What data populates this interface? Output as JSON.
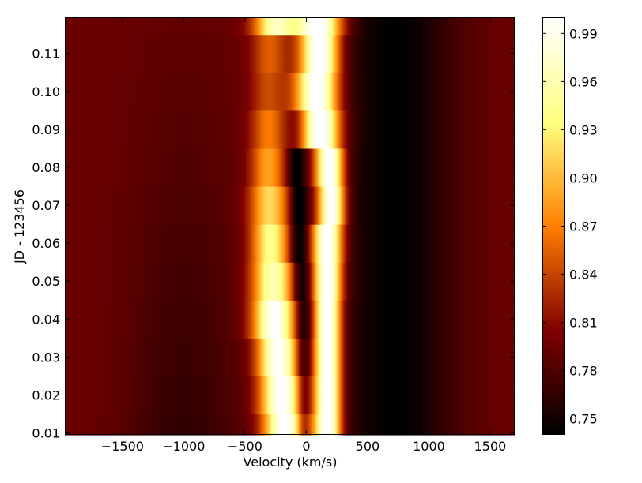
{
  "chart_data": {
    "type": "heatmap",
    "title": "",
    "xlabel": "Velocity (km/s)",
    "ylabel": "JD - 123456",
    "xlim": [
      -1970,
      1700
    ],
    "ylim": [
      0.0095,
      0.1195
    ],
    "x_ticks": [
      -1500,
      -1000,
      -500,
      0,
      500,
      1000,
      1500
    ],
    "x_tick_labels": [
      "−1500",
      "−1000",
      "−500",
      "0",
      "500",
      "1000",
      "1500"
    ],
    "y_ticks": [
      0.01,
      0.02,
      0.03,
      0.04,
      0.05,
      0.06,
      0.07,
      0.08,
      0.09,
      0.1,
      0.11
    ],
    "y_tick_labels": [
      "0.01",
      "0.02",
      "0.03",
      "0.04",
      "0.05",
      "0.06",
      "0.07",
      "0.08",
      "0.09",
      "0.10",
      "0.11"
    ],
    "rows_jd": [
      0.01,
      0.02,
      0.03,
      0.04,
      0.05,
      0.06,
      0.07,
      0.08,
      0.09,
      0.1,
      0.11,
      0.12
    ],
    "colorbar": {
      "colormap": "afmhot",
      "vmin": 0.74,
      "vmax": 1.0,
      "ticks": [
        0.75,
        0.78,
        0.81,
        0.84,
        0.87,
        0.9,
        0.93,
        0.96,
        0.99
      ],
      "tick_labels": [
        "0.75",
        "0.78",
        "0.81",
        "0.84",
        "0.87",
        "0.90",
        "0.93",
        "0.96",
        "0.99"
      ]
    },
    "profile_features": {
      "continuum_level": 0.795,
      "broad_absorption": {
        "center": 720,
        "width": 350,
        "depth": 0.055
      },
      "blue_dip": {
        "center": -1000,
        "width": 350,
        "depth_min": 0.005,
        "depth_max": 0.03
      },
      "emission_rows": [
        {
          "jd": 0.01,
          "blue_center": -175,
          "blue_width": 120,
          "blue_amp": 0.215,
          "dip_center": -25,
          "dip_width": 40,
          "dip_amp": 0.06,
          "red_center": 175,
          "red_width": 75,
          "red_amp": 0.235
        },
        {
          "jd": 0.02,
          "blue_center": -200,
          "blue_width": 120,
          "blue_amp": 0.215,
          "dip_center": -20,
          "dip_width": 45,
          "dip_amp": 0.06,
          "red_center": 175,
          "red_width": 75,
          "red_amp": 0.235
        },
        {
          "jd": 0.03,
          "blue_center": -230,
          "blue_width": 115,
          "blue_amp": 0.21,
          "dip_center": -20,
          "dip_width": 45,
          "dip_amp": 0.06,
          "red_center": 175,
          "red_width": 75,
          "red_amp": 0.235
        },
        {
          "jd": 0.04,
          "blue_center": -260,
          "blue_width": 120,
          "blue_amp": 0.21,
          "dip_center": -20,
          "dip_width": 50,
          "dip_amp": 0.065,
          "red_center": 175,
          "red_width": 75,
          "red_amp": 0.235
        },
        {
          "jd": 0.05,
          "blue_center": -270,
          "blue_width": 120,
          "blue_amp": 0.17,
          "dip_center": -40,
          "dip_width": 55,
          "dip_amp": 0.07,
          "red_center": 175,
          "red_width": 80,
          "red_amp": 0.235
        },
        {
          "jd": 0.06,
          "blue_center": -290,
          "blue_width": 110,
          "blue_amp": 0.15,
          "dip_center": -60,
          "dip_width": 55,
          "dip_amp": 0.07,
          "red_center": 175,
          "red_width": 85,
          "red_amp": 0.23
        },
        {
          "jd": 0.07,
          "blue_center": -300,
          "blue_width": 110,
          "blue_amp": 0.125,
          "dip_center": -60,
          "dip_width": 50,
          "dip_amp": 0.07,
          "red_center": 205,
          "red_width": 75,
          "red_amp": 0.23
        },
        {
          "jd": 0.08,
          "blue_center": -310,
          "blue_width": 100,
          "blue_amp": 0.095,
          "dip_center": -80,
          "dip_width": 55,
          "dip_amp": 0.06,
          "red_center": 190,
          "red_width": 80,
          "red_amp": 0.23
        },
        {
          "jd": 0.09,
          "blue_center": -310,
          "blue_width": 100,
          "blue_amp": 0.075,
          "dip_center": -80,
          "dip_width": 55,
          "dip_amp": 0.02,
          "red_center": 120,
          "red_width": 110,
          "red_amp": 0.23
        },
        {
          "jd": 0.1,
          "blue_center": -310,
          "blue_width": 100,
          "blue_amp": 0.05,
          "dip_center": -80,
          "dip_width": 50,
          "dip_amp": 0.0,
          "red_center": 90,
          "red_width": 120,
          "red_amp": 0.225
        },
        {
          "jd": 0.11,
          "blue_center": -300,
          "blue_width": 100,
          "blue_amp": 0.06,
          "dip_center": -80,
          "dip_width": 40,
          "dip_amp": 0.0,
          "red_center": 110,
          "red_width": 110,
          "red_amp": 0.23
        },
        {
          "jd": 0.12,
          "blue_center": -250,
          "blue_width": 120,
          "blue_amp": 0.17,
          "dip_center": -80,
          "dip_width": 40,
          "dip_amp": 0.0,
          "red_center": 100,
          "red_width": 130,
          "red_amp": 0.23
        }
      ]
    },
    "grid": false,
    "legend": "none"
  }
}
